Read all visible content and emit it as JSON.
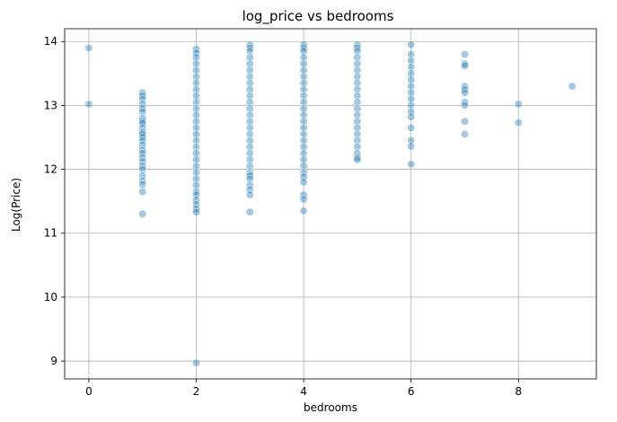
{
  "chart_data": {
    "type": "scatter",
    "title": "log_price vs bedrooms",
    "xlabel": "bedrooms",
    "ylabel": "Log(Price)",
    "xlim": [
      -0.45,
      9.45
    ],
    "ylim": [
      8.72,
      14.2
    ],
    "xticks": [
      0,
      2,
      4,
      6,
      8
    ],
    "yticks": [
      9,
      10,
      11,
      12,
      13,
      14
    ],
    "xtick_labels": [
      "0",
      "2",
      "4",
      "6",
      "8"
    ],
    "ytick_labels": [
      "9",
      "10",
      "11",
      "12",
      "13",
      "14"
    ],
    "grid": true,
    "point_color": "#1f77b4",
    "point_alpha": 0.4,
    "series": [
      {
        "points": [
          [
            0,
            13.9
          ],
          [
            0,
            13.02
          ],
          [
            1,
            13.2
          ],
          [
            1,
            13.15
          ],
          [
            1,
            13.1
          ],
          [
            1,
            13.02
          ],
          [
            1,
            12.95
          ],
          [
            1,
            12.9
          ],
          [
            1,
            12.8
          ],
          [
            1,
            12.75
          ],
          [
            1,
            12.72
          ],
          [
            1,
            12.65
          ],
          [
            1,
            12.58
          ],
          [
            1,
            12.55
          ],
          [
            1,
            12.5
          ],
          [
            1,
            12.45
          ],
          [
            1,
            12.38
          ],
          [
            1,
            12.3
          ],
          [
            1,
            12.25
          ],
          [
            1,
            12.18
          ],
          [
            1,
            12.12
          ],
          [
            1,
            12.05
          ],
          [
            1,
            12.0
          ],
          [
            1,
            11.9
          ],
          [
            1,
            11.82
          ],
          [
            1,
            11.76
          ],
          [
            1,
            11.65
          ],
          [
            1,
            11.3
          ],
          [
            2,
            13.88
          ],
          [
            2,
            13.82
          ],
          [
            2,
            13.75
          ],
          [
            2,
            13.65
          ],
          [
            2,
            13.55
          ],
          [
            2,
            13.45
          ],
          [
            2,
            13.35
          ],
          [
            2,
            13.25
          ],
          [
            2,
            13.15
          ],
          [
            2,
            13.05
          ],
          [
            2,
            12.95
          ],
          [
            2,
            12.85
          ],
          [
            2,
            12.75
          ],
          [
            2,
            12.65
          ],
          [
            2,
            12.55
          ],
          [
            2,
            12.45
          ],
          [
            2,
            12.35
          ],
          [
            2,
            12.25
          ],
          [
            2,
            12.15
          ],
          [
            2,
            12.05
          ],
          [
            2,
            11.95
          ],
          [
            2,
            11.85
          ],
          [
            2,
            11.75
          ],
          [
            2,
            11.65
          ],
          [
            2,
            11.6
          ],
          [
            2,
            11.52
          ],
          [
            2,
            11.45
          ],
          [
            2,
            11.38
          ],
          [
            2,
            11.33
          ],
          [
            2,
            8.97
          ],
          [
            3,
            13.95
          ],
          [
            3,
            13.9
          ],
          [
            3,
            13.85
          ],
          [
            3,
            13.75
          ],
          [
            3,
            13.65
          ],
          [
            3,
            13.55
          ],
          [
            3,
            13.45
          ],
          [
            3,
            13.35
          ],
          [
            3,
            13.25
          ],
          [
            3,
            13.15
          ],
          [
            3,
            13.05
          ],
          [
            3,
            12.95
          ],
          [
            3,
            12.85
          ],
          [
            3,
            12.75
          ],
          [
            3,
            12.65
          ],
          [
            3,
            12.55
          ],
          [
            3,
            12.45
          ],
          [
            3,
            12.35
          ],
          [
            3,
            12.25
          ],
          [
            3,
            12.15
          ],
          [
            3,
            12.05
          ],
          [
            3,
            11.95
          ],
          [
            3,
            11.9
          ],
          [
            3,
            11.85
          ],
          [
            3,
            11.75
          ],
          [
            3,
            11.68
          ],
          [
            3,
            11.6
          ],
          [
            3,
            11.33
          ],
          [
            4,
            13.95
          ],
          [
            4,
            13.9
          ],
          [
            4,
            13.85
          ],
          [
            4,
            13.75
          ],
          [
            4,
            13.65
          ],
          [
            4,
            13.55
          ],
          [
            4,
            13.45
          ],
          [
            4,
            13.35
          ],
          [
            4,
            13.25
          ],
          [
            4,
            13.15
          ],
          [
            4,
            13.05
          ],
          [
            4,
            12.95
          ],
          [
            4,
            12.85
          ],
          [
            4,
            12.75
          ],
          [
            4,
            12.65
          ],
          [
            4,
            12.55
          ],
          [
            4,
            12.45
          ],
          [
            4,
            12.35
          ],
          [
            4,
            12.25
          ],
          [
            4,
            12.15
          ],
          [
            4,
            12.05
          ],
          [
            4,
            11.95
          ],
          [
            4,
            11.88
          ],
          [
            4,
            11.8
          ],
          [
            4,
            11.6
          ],
          [
            4,
            11.53
          ],
          [
            4,
            11.35
          ],
          [
            5,
            13.95
          ],
          [
            5,
            13.9
          ],
          [
            5,
            13.85
          ],
          [
            5,
            13.75
          ],
          [
            5,
            13.65
          ],
          [
            5,
            13.55
          ],
          [
            5,
            13.45
          ],
          [
            5,
            13.35
          ],
          [
            5,
            13.25
          ],
          [
            5,
            13.15
          ],
          [
            5,
            13.05
          ],
          [
            5,
            12.95
          ],
          [
            5,
            12.85
          ],
          [
            5,
            12.75
          ],
          [
            5,
            12.65
          ],
          [
            5,
            12.55
          ],
          [
            5,
            12.45
          ],
          [
            5,
            12.35
          ],
          [
            5,
            12.25
          ],
          [
            5,
            12.18
          ],
          [
            5,
            12.15
          ],
          [
            6,
            13.95
          ],
          [
            6,
            13.8
          ],
          [
            6,
            13.7
          ],
          [
            6,
            13.6
          ],
          [
            6,
            13.5
          ],
          [
            6,
            13.4
          ],
          [
            6,
            13.3
          ],
          [
            6,
            13.2
          ],
          [
            6,
            13.1
          ],
          [
            6,
            13.0
          ],
          [
            6,
            12.9
          ],
          [
            6,
            12.82
          ],
          [
            6,
            12.65
          ],
          [
            6,
            12.45
          ],
          [
            6,
            12.36
          ],
          [
            6,
            12.08
          ],
          [
            7,
            13.8
          ],
          [
            7,
            13.65
          ],
          [
            7,
            13.62
          ],
          [
            7,
            13.3
          ],
          [
            7,
            13.25
          ],
          [
            7,
            13.2
          ],
          [
            7,
            13.05
          ],
          [
            7,
            13.0
          ],
          [
            7,
            12.75
          ],
          [
            7,
            12.55
          ],
          [
            8,
            13.02
          ],
          [
            8,
            12.73
          ],
          [
            9,
            13.3
          ]
        ]
      }
    ]
  }
}
